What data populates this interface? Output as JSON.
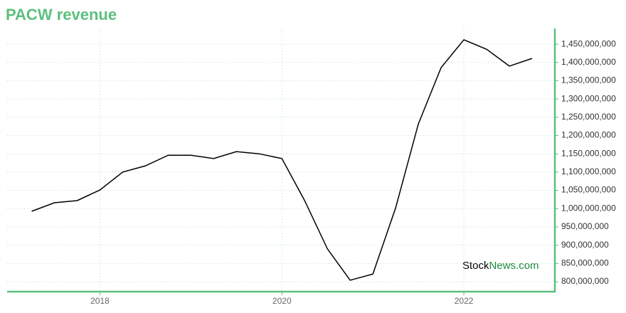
{
  "chart_data": {
    "type": "line",
    "title": "PACW revenue",
    "x": [
      2017.25,
      2017.5,
      2017.75,
      2018,
      2018.25,
      2018.5,
      2018.75,
      2019,
      2019.25,
      2019.5,
      2019.75,
      2020,
      2020.25,
      2020.5,
      2020.75,
      2021,
      2021.25,
      2021.5,
      2021.75,
      2022,
      2022.25,
      2022.5,
      2022.75
    ],
    "series": [
      {
        "name": "PACW revenue",
        "color": "#000000",
        "values": [
          992700000,
          1016000000,
          1022000000,
          1051000000,
          1100000000,
          1117000000,
          1146000000,
          1146000000,
          1137000000,
          1156000000,
          1150000000,
          1137000000,
          1022000000,
          890000000,
          804000000,
          821000000,
          1002000000,
          1232000000,
          1386000000,
          1462000000,
          1436000000,
          1390000000,
          1411000000
        ]
      }
    ],
    "xlim": [
      2016.98,
      2023
    ],
    "xticks": [
      2018,
      2020,
      2022
    ],
    "ylim": [
      772750000,
      1493000000
    ],
    "yticks": [
      {
        "value": 800000000,
        "label": "800,000,000"
      },
      {
        "value": 850000000,
        "label": "850,000,000"
      },
      {
        "value": 900000000,
        "label": "900,000,000"
      },
      {
        "value": 950000000,
        "label": "950,000,000"
      },
      {
        "value": 1000000000,
        "label": "1,000,000,000"
      },
      {
        "value": 1050000000,
        "label": "1,050,000,000"
      },
      {
        "value": 1100000000,
        "label": "1,100,000,000"
      },
      {
        "value": 1150000000,
        "label": "1,150,000,000"
      },
      {
        "value": 1200000000,
        "label": "1,200,000,000"
      },
      {
        "value": 1250000000,
        "label": "1,250,000,000"
      },
      {
        "value": 1300000000,
        "label": "1,300,000,000"
      },
      {
        "value": 1350000000,
        "label": "1,350,000,000"
      },
      {
        "value": 1400000000,
        "label": "1,400,000,000"
      },
      {
        "value": 1450000000,
        "label": "1,450,000,000"
      }
    ],
    "grid": true,
    "axis_color": "#5cbf7e",
    "watermark": [
      "Stock",
      "News.com"
    ]
  }
}
